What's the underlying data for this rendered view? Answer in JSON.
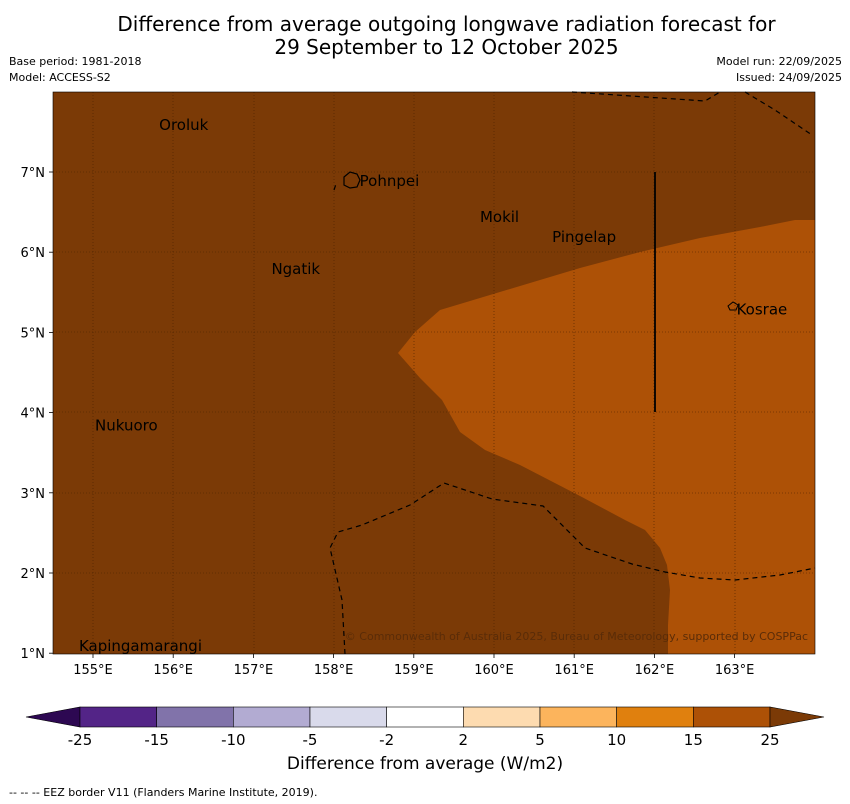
{
  "title": {
    "line1": "Difference from average outgoing longwave radiation forecast for",
    "line2": "29 September to 12 October 2025"
  },
  "meta": {
    "base_period": "Base period: 1981-2018",
    "model": "Model: ACCESS-S2",
    "model_run": "Model run: 22/09/2025",
    "issued": "Issued: 24/09/2025"
  },
  "map": {
    "lon_labels": [
      "155°E",
      "156°E",
      "157°E",
      "158°E",
      "159°E",
      "160°E",
      "161°E",
      "162°E",
      "163°E"
    ],
    "lat_labels": [
      "7°N",
      "6°N",
      "5°N",
      "4°N",
      "3°N",
      "2°N",
      "1°N"
    ],
    "places": [
      {
        "name": "Oroluk",
        "lon": 155.8,
        "lat": 7.6
      },
      {
        "name": "Pohnpei",
        "lon": 158.3,
        "lat": 6.9
      },
      {
        "name": "Mokil",
        "lon": 159.8,
        "lat": 6.45
      },
      {
        "name": "Pingelap",
        "lon": 160.7,
        "lat": 6.2
      },
      {
        "name": "Ngatik",
        "lon": 157.2,
        "lat": 5.8
      },
      {
        "name": "Kosrae",
        "lon": 163.0,
        "lat": 5.3
      },
      {
        "name": "Nukuoro",
        "lon": 155.0,
        "lat": 3.85
      },
      {
        "name": "Kapingamarangi",
        "lon": 154.8,
        "lat": 1.1
      }
    ],
    "copyright": "© Commonwealth of Australia 2025, Bureau of Meteorology, supported by COSPPac",
    "colors": {
      "dark": "#7b3a06",
      "light": "#ad5106"
    }
  },
  "colorbar": {
    "tick_labels": [
      "-25",
      "-15",
      "-10",
      "-5",
      "-2",
      "2",
      "5",
      "10",
      "15",
      "25"
    ],
    "colors": [
      "#2d0852",
      "#532487",
      "#8173aa",
      "#b2abd2",
      "#d9daeb",
      "#ffffff",
      "#fddbb0",
      "#fcb45c",
      "#e0800e",
      "#ad5106",
      "#7b3a06"
    ],
    "label": "Difference from average (W/m2)"
  },
  "footer": "--  --  -- EEZ border V11 (Flanders Marine Institute, 2019)."
}
